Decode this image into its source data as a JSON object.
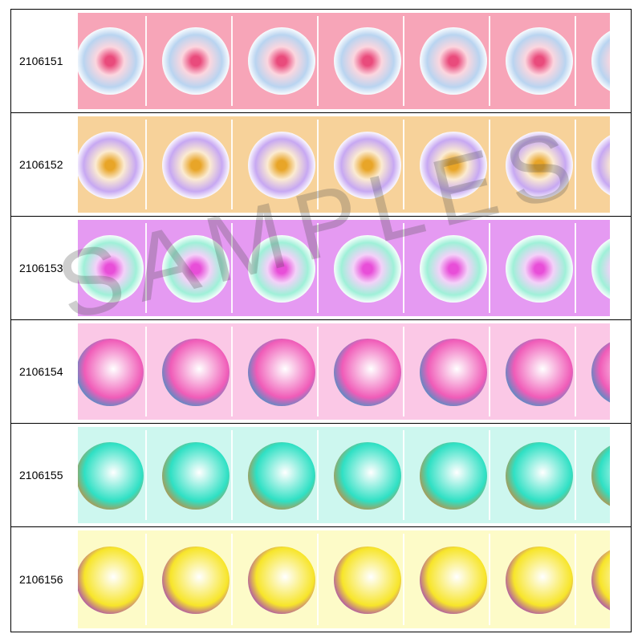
{
  "rows": [
    {
      "code": "2106151",
      "bg": "#f7a5b8",
      "ring": "#b9d4f0",
      "inner": "#e94b7c",
      "style": "soft"
    },
    {
      "code": "2106152",
      "bg": "#f7d29a",
      "ring": "#c7a8f2",
      "inner": "#e8a528",
      "style": "soft"
    },
    {
      "code": "2106153",
      "bg": "#e59af2",
      "ring": "#9ff0d8",
      "inner": "#e84ed8",
      "style": "soft"
    },
    {
      "code": "2106154",
      "bg": "#fbc8e6",
      "ring": "#3d95c6",
      "inner": "#f05cb8",
      "style": "ring"
    },
    {
      "code": "2106155",
      "bg": "#cdf7ef",
      "ring": "#c58a3e",
      "inner": "#2fe0c4",
      "style": "ring"
    },
    {
      "code": "2106156",
      "bg": "#fdfbc8",
      "ring": "#a13cc0",
      "inner": "#f7e52a",
      "style": "ring"
    }
  ],
  "watermark": "SAMPLES"
}
